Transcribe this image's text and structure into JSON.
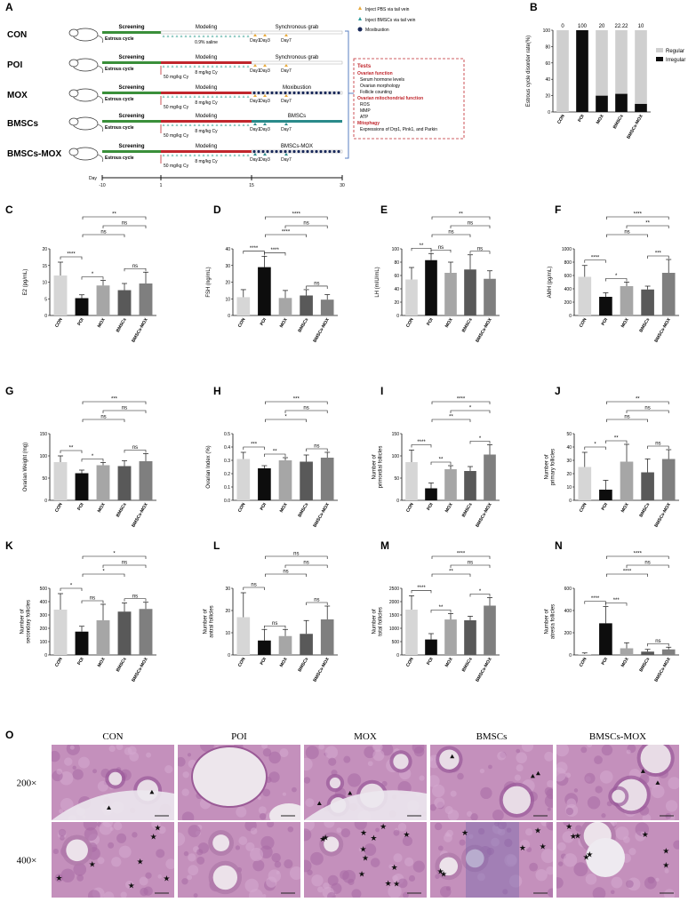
{
  "panel_letters": [
    "A",
    "B",
    "C",
    "D",
    "E",
    "F",
    "G",
    "H",
    "I",
    "J",
    "K",
    "L",
    "M",
    "N",
    "O"
  ],
  "schematic": {
    "groups": [
      {
        "name": "CON",
        "phases": [
          "Screening",
          "Modeling",
          "Synchronous grab"
        ],
        "injection": "0.9% saline",
        "days": [
          "Day1",
          "Day3",
          "Day7"
        ]
      },
      {
        "name": "POI",
        "phases": [
          "Screening",
          "Modeling",
          "Synchronous grab"
        ],
        "dose": "50 mg/kg Cy",
        "injection": "8 mg/kg Cy",
        "days": [
          "Day1",
          "Day3",
          "Day7"
        ]
      },
      {
        "name": "MOX",
        "phases": [
          "Screening",
          "Modeling",
          "Moxibustion"
        ],
        "dose": "50 mg/kg Cy",
        "injection": "8 mg/kg Cy",
        "days": [
          "Day1",
          "Day3",
          "Day7"
        ]
      },
      {
        "name": "BMSCs",
        "phases": [
          "Screening",
          "Modeling",
          "BMSCs"
        ],
        "dose": "50 mg/kg Cy",
        "injection": "8 mg/kg Cy",
        "days": [
          "Day1",
          "Day3",
          "Day7"
        ]
      },
      {
        "name": "BMSCs-MOX",
        "phases": [
          "Screening",
          "Modeling",
          "BMSCs-MOX"
        ],
        "dose": "50 mg/kg Cy",
        "injection": "8 mg/kg Cy",
        "days": [
          "Day1",
          "Day3",
          "Day7"
        ]
      }
    ],
    "estrous_label": "Estrous cycle",
    "timeline": {
      "label": "Day",
      "ticks": [
        "-10",
        "1",
        "15",
        "30"
      ]
    },
    "legend": [
      "Inject PBS via tail vein",
      "Inject BMSCs via tail vein",
      "Moxibustion"
    ],
    "tests": {
      "title": "Tests",
      "sections": [
        {
          "heading": "Ovarian function",
          "items": [
            "Serum hormone levels",
            "Ovarian morphology",
            "Follicle counting"
          ]
        },
        {
          "heading": "Ovarian mitochondrial function",
          "items": [
            "ROS",
            "MMP",
            "ATP"
          ]
        },
        {
          "heading": "Mitophagy",
          "items": [
            "Expressions of Drp1, Pink1, and Parkin"
          ]
        }
      ]
    }
  },
  "chart_data": [
    {
      "id": "B",
      "type": "bar",
      "stacked": true,
      "categories": [
        "CON",
        "POI",
        "MOX",
        "BMSCs",
        "BMSCs-MOX"
      ],
      "series": [
        {
          "name": "Regular",
          "values": [
            100,
            0,
            80,
            77.78,
            90
          ]
        },
        {
          "name": "Irregular",
          "values": [
            0,
            100,
            20,
            22.22,
            10
          ]
        }
      ],
      "data_labels": [
        "0",
        "100",
        "20",
        "22.22",
        "10"
      ],
      "ylabel": "Estrous cycle disorder rate(%)",
      "ylim": [
        0,
        100
      ],
      "yticks": [
        "0",
        "20",
        "40",
        "60",
        "80",
        "100"
      ],
      "legend_position": "right"
    },
    {
      "id": "C",
      "type": "bar",
      "categories": [
        "CON",
        "POI",
        "MOX",
        "BMSCs",
        "BMSCs-MOX"
      ],
      "values": [
        12,
        5.2,
        9,
        7.6,
        9.6
      ],
      "err": [
        4,
        1,
        1.5,
        2,
        3.4
      ],
      "ylabel": "E2 (pg/mL)",
      "ylim": [
        0,
        20
      ],
      "yticks": [
        "0",
        "5",
        "10",
        "15",
        "20"
      ],
      "sig": [
        {
          "a": 0,
          "b": 1,
          "label": "****"
        },
        {
          "a": 1,
          "b": 2,
          "label": "*"
        },
        {
          "a": 1,
          "b": 3,
          "label": "ns"
        },
        {
          "a": 1,
          "b": 4,
          "label": "**"
        },
        {
          "a": 2,
          "b": 4,
          "label": "ns"
        },
        {
          "a": 3,
          "b": 4,
          "label": "ns"
        }
      ]
    },
    {
      "id": "D",
      "type": "bar",
      "categories": [
        "CON",
        "POI",
        "MOX",
        "BMSCs",
        "BMSCs-MOX"
      ],
      "values": [
        11,
        29,
        10.5,
        12,
        9.5
      ],
      "err": [
        4.5,
        6.5,
        4.5,
        3.5,
        3
      ],
      "ylabel": "FSH (ng/mL)",
      "ylim": [
        0,
        40
      ],
      "yticks": [
        "0",
        "10",
        "20",
        "30",
        "40"
      ],
      "sig": [
        {
          "a": 0,
          "b": 1,
          "label": "****"
        },
        {
          "a": 1,
          "b": 2,
          "label": "****"
        },
        {
          "a": 1,
          "b": 3,
          "label": "****"
        },
        {
          "a": 1,
          "b": 4,
          "label": "****"
        },
        {
          "a": 2,
          "b": 4,
          "label": "ns"
        },
        {
          "a": 3,
          "b": 4,
          "label": "ns"
        }
      ]
    },
    {
      "id": "E",
      "type": "bar",
      "categories": [
        "CON",
        "POI",
        "MOX",
        "BMSCs",
        "BMSCs-MOX"
      ],
      "values": [
        54,
        83,
        64,
        69,
        55
      ],
      "err": [
        18,
        10,
        16,
        22,
        12
      ],
      "ylabel": "LH (mIU/mL)",
      "ylim": [
        0,
        100
      ],
      "yticks": [
        "0",
        "20",
        "40",
        "60",
        "80",
        "100"
      ],
      "sig": [
        {
          "a": 0,
          "b": 1,
          "label": "**"
        },
        {
          "a": 1,
          "b": 2,
          "label": "ns"
        },
        {
          "a": 1,
          "b": 3,
          "label": "ns"
        },
        {
          "a": 1,
          "b": 4,
          "label": "**"
        },
        {
          "a": 2,
          "b": 4,
          "label": "ns"
        },
        {
          "a": 3,
          "b": 4,
          "label": "ns"
        }
      ]
    },
    {
      "id": "F",
      "type": "bar",
      "categories": [
        "CON",
        "POI",
        "MOX",
        "BMSCs",
        "BMSCs-MOX"
      ],
      "values": [
        580,
        280,
        440,
        390,
        640
      ],
      "err": [
        170,
        60,
        60,
        50,
        200
      ],
      "ylabel": "AMH (pg/mL)",
      "ylim": [
        0,
        1000
      ],
      "yticks": [
        "0",
        "200",
        "400",
        "600",
        "800",
        "1000"
      ],
      "sig": [
        {
          "a": 0,
          "b": 1,
          "label": "****"
        },
        {
          "a": 1,
          "b": 2,
          "label": "*"
        },
        {
          "a": 1,
          "b": 3,
          "label": "ns"
        },
        {
          "a": 1,
          "b": 4,
          "label": "****"
        },
        {
          "a": 2,
          "b": 4,
          "label": "**"
        },
        {
          "a": 3,
          "b": 4,
          "label": "***"
        }
      ]
    },
    {
      "id": "G",
      "type": "bar",
      "categories": [
        "CON",
        "POI",
        "MOX",
        "BMSCs",
        "BMSCs-MOX"
      ],
      "values": [
        86,
        61,
        79,
        77,
        88
      ],
      "err": [
        14,
        7,
        6,
        12,
        17
      ],
      "ylabel": "Ovarian Weight (mg)",
      "ylim": [
        0,
        150
      ],
      "yticks": [
        "0",
        "50",
        "100",
        "150"
      ],
      "sig": [
        {
          "a": 0,
          "b": 1,
          "label": "**"
        },
        {
          "a": 1,
          "b": 2,
          "label": "*"
        },
        {
          "a": 1,
          "b": 3,
          "label": "ns"
        },
        {
          "a": 1,
          "b": 4,
          "label": "***"
        },
        {
          "a": 2,
          "b": 4,
          "label": "ns"
        },
        {
          "a": 3,
          "b": 4,
          "label": "ns"
        }
      ]
    },
    {
      "id": "H",
      "type": "bar",
      "categories": [
        "CON",
        "POI",
        "MOX",
        "BMSCs",
        "BMSCs-MOX"
      ],
      "values": [
        0.31,
        0.24,
        0.3,
        0.29,
        0.32
      ],
      "err": [
        0.05,
        0.02,
        0.02,
        0.05,
        0.04
      ],
      "ylabel": "Ovarian Index (%)",
      "ylim": [
        0,
        0.5
      ],
      "yticks": [
        "0.0",
        "0.1",
        "0.2",
        "0.3",
        "0.4",
        "0.5"
      ],
      "sig": [
        {
          "a": 0,
          "b": 1,
          "label": "***"
        },
        {
          "a": 1,
          "b": 2,
          "label": "**"
        },
        {
          "a": 1,
          "b": 3,
          "label": "*"
        },
        {
          "a": 1,
          "b": 4,
          "label": "***"
        },
        {
          "a": 2,
          "b": 4,
          "label": "ns"
        },
        {
          "a": 3,
          "b": 4,
          "label": "ns"
        }
      ]
    },
    {
      "id": "I",
      "type": "bar",
      "categories": [
        "CON",
        "POI",
        "MOX",
        "BMSCs",
        "BMSCs-MOX"
      ],
      "values": [
        86,
        27,
        70,
        66,
        103
      ],
      "err": [
        27,
        12,
        8,
        10,
        22
      ],
      "ylabel": "Number of primordial follicles",
      "ylim": [
        0,
        150
      ],
      "yticks": [
        "0",
        "50",
        "100",
        "150"
      ],
      "sig": [
        {
          "a": 0,
          "b": 1,
          "label": "****"
        },
        {
          "a": 1,
          "b": 2,
          "label": "**"
        },
        {
          "a": 1,
          "b": 3,
          "label": "**"
        },
        {
          "a": 1,
          "b": 4,
          "label": "****"
        },
        {
          "a": 2,
          "b": 4,
          "label": "*"
        },
        {
          "a": 3,
          "b": 4,
          "label": "*"
        }
      ]
    },
    {
      "id": "J",
      "type": "bar",
      "categories": [
        "CON",
        "POI",
        "MOX",
        "BMSCs",
        "BMSCs-MOX"
      ],
      "values": [
        25,
        8,
        29,
        21,
        31
      ],
      "err": [
        11,
        7,
        13,
        10,
        7
      ],
      "ylabel": "Number of primary follicles",
      "ylim": [
        0,
        50
      ],
      "yticks": [
        "0",
        "10",
        "20",
        "30",
        "40",
        "50"
      ],
      "sig": [
        {
          "a": 0,
          "b": 1,
          "label": "*"
        },
        {
          "a": 1,
          "b": 2,
          "label": "**"
        },
        {
          "a": 1,
          "b": 3,
          "label": "ns"
        },
        {
          "a": 1,
          "b": 4,
          "label": "**"
        },
        {
          "a": 2,
          "b": 4,
          "label": "ns"
        },
        {
          "a": 3,
          "b": 4,
          "label": "ns"
        }
      ]
    },
    {
      "id": "K",
      "type": "bar",
      "categories": [
        "CON",
        "POI",
        "MOX",
        "BMSCs",
        "BMSCs-MOX"
      ],
      "values": [
        340,
        175,
        260,
        325,
        345
      ],
      "err": [
        120,
        40,
        120,
        65,
        50
      ],
      "ylabel": "Number of secondary follicles",
      "ylim": [
        0,
        500
      ],
      "yticks": [
        "0",
        "100",
        "200",
        "300",
        "400",
        "500"
      ],
      "sig": [
        {
          "a": 0,
          "b": 1,
          "label": "*"
        },
        {
          "a": 1,
          "b": 2,
          "label": "ns"
        },
        {
          "a": 1,
          "b": 3,
          "label": "*"
        },
        {
          "a": 1,
          "b": 4,
          "label": "*"
        },
        {
          "a": 2,
          "b": 4,
          "label": "ns"
        },
        {
          "a": 3,
          "b": 4,
          "label": "ns"
        }
      ]
    },
    {
      "id": "L",
      "type": "bar",
      "categories": [
        "CON",
        "POI",
        "MOX",
        "BMSCs",
        "BMSCs-MOX"
      ],
      "values": [
        17,
        6.5,
        8.5,
        9.5,
        16
      ],
      "err": [
        11,
        5,
        3,
        6,
        6
      ],
      "ylabel": "Number of antral follicles",
      "ylim": [
        0,
        30
      ],
      "yticks": [
        "0",
        "10",
        "20",
        "30"
      ],
      "sig": [
        {
          "a": 0,
          "b": 1,
          "label": "ns"
        },
        {
          "a": 1,
          "b": 2,
          "label": "ns"
        },
        {
          "a": 1,
          "b": 3,
          "label": "ns"
        },
        {
          "a": 1,
          "b": 4,
          "label": "ns"
        },
        {
          "a": 2,
          "b": 4,
          "label": "ns"
        },
        {
          "a": 3,
          "b": 4,
          "label": "ns"
        }
      ]
    },
    {
      "id": "M",
      "type": "bar",
      "categories": [
        "CON",
        "POI",
        "MOX",
        "BMSCs",
        "BMSCs-MOX"
      ],
      "values": [
        1700,
        580,
        1330,
        1300,
        1850
      ],
      "err": [
        520,
        220,
        220,
        150,
        300
      ],
      "ylabel": "Number of total follicles",
      "ylim": [
        0,
        2500
      ],
      "yticks": [
        "0",
        "500",
        "1000",
        "1500",
        "2000",
        "2500"
      ],
      "sig": [
        {
          "a": 0,
          "b": 1,
          "label": "****"
        },
        {
          "a": 1,
          "b": 2,
          "label": "**"
        },
        {
          "a": 1,
          "b": 3,
          "label": "**"
        },
        {
          "a": 1,
          "b": 4,
          "label": "****"
        },
        {
          "a": 2,
          "b": 4,
          "label": "ns"
        },
        {
          "a": 3,
          "b": 4,
          "label": "*"
        }
      ]
    },
    {
      "id": "N",
      "type": "bar",
      "categories": [
        "CON",
        "POI",
        "MOX",
        "BMSCs",
        "BMSCs-MOX"
      ],
      "values": [
        8,
        285,
        60,
        30,
        50
      ],
      "err": [
        10,
        150,
        50,
        20,
        20
      ],
      "ylabel": "Number of atresia follicles",
      "ylim": [
        0,
        600
      ],
      "yticks": [
        "0",
        "200",
        "400",
        "600"
      ],
      "sig": [
        {
          "a": 0,
          "b": 1,
          "label": "****"
        },
        {
          "a": 1,
          "b": 2,
          "label": "***"
        },
        {
          "a": 1,
          "b": 3,
          "label": "****"
        },
        {
          "a": 1,
          "b": 4,
          "label": "****"
        },
        {
          "a": 2,
          "b": 4,
          "label": "ns"
        },
        {
          "a": 3,
          "b": 4,
          "label": "ns"
        }
      ]
    }
  ],
  "histology": {
    "columns": [
      "CON",
      "POI",
      "MOX",
      "BMSCs",
      "BMSCs-MOX"
    ],
    "rows": [
      "200×",
      "400×"
    ]
  },
  "colors": {
    "green": "#3a8f3a",
    "red": "#c0272d",
    "teal": "#2a8a8a",
    "navy": "#1a2a5a",
    "gray": "#cfcfcf",
    "black": "#111111",
    "tissue": "#c38bb8",
    "lumen": "#ece6ec"
  }
}
